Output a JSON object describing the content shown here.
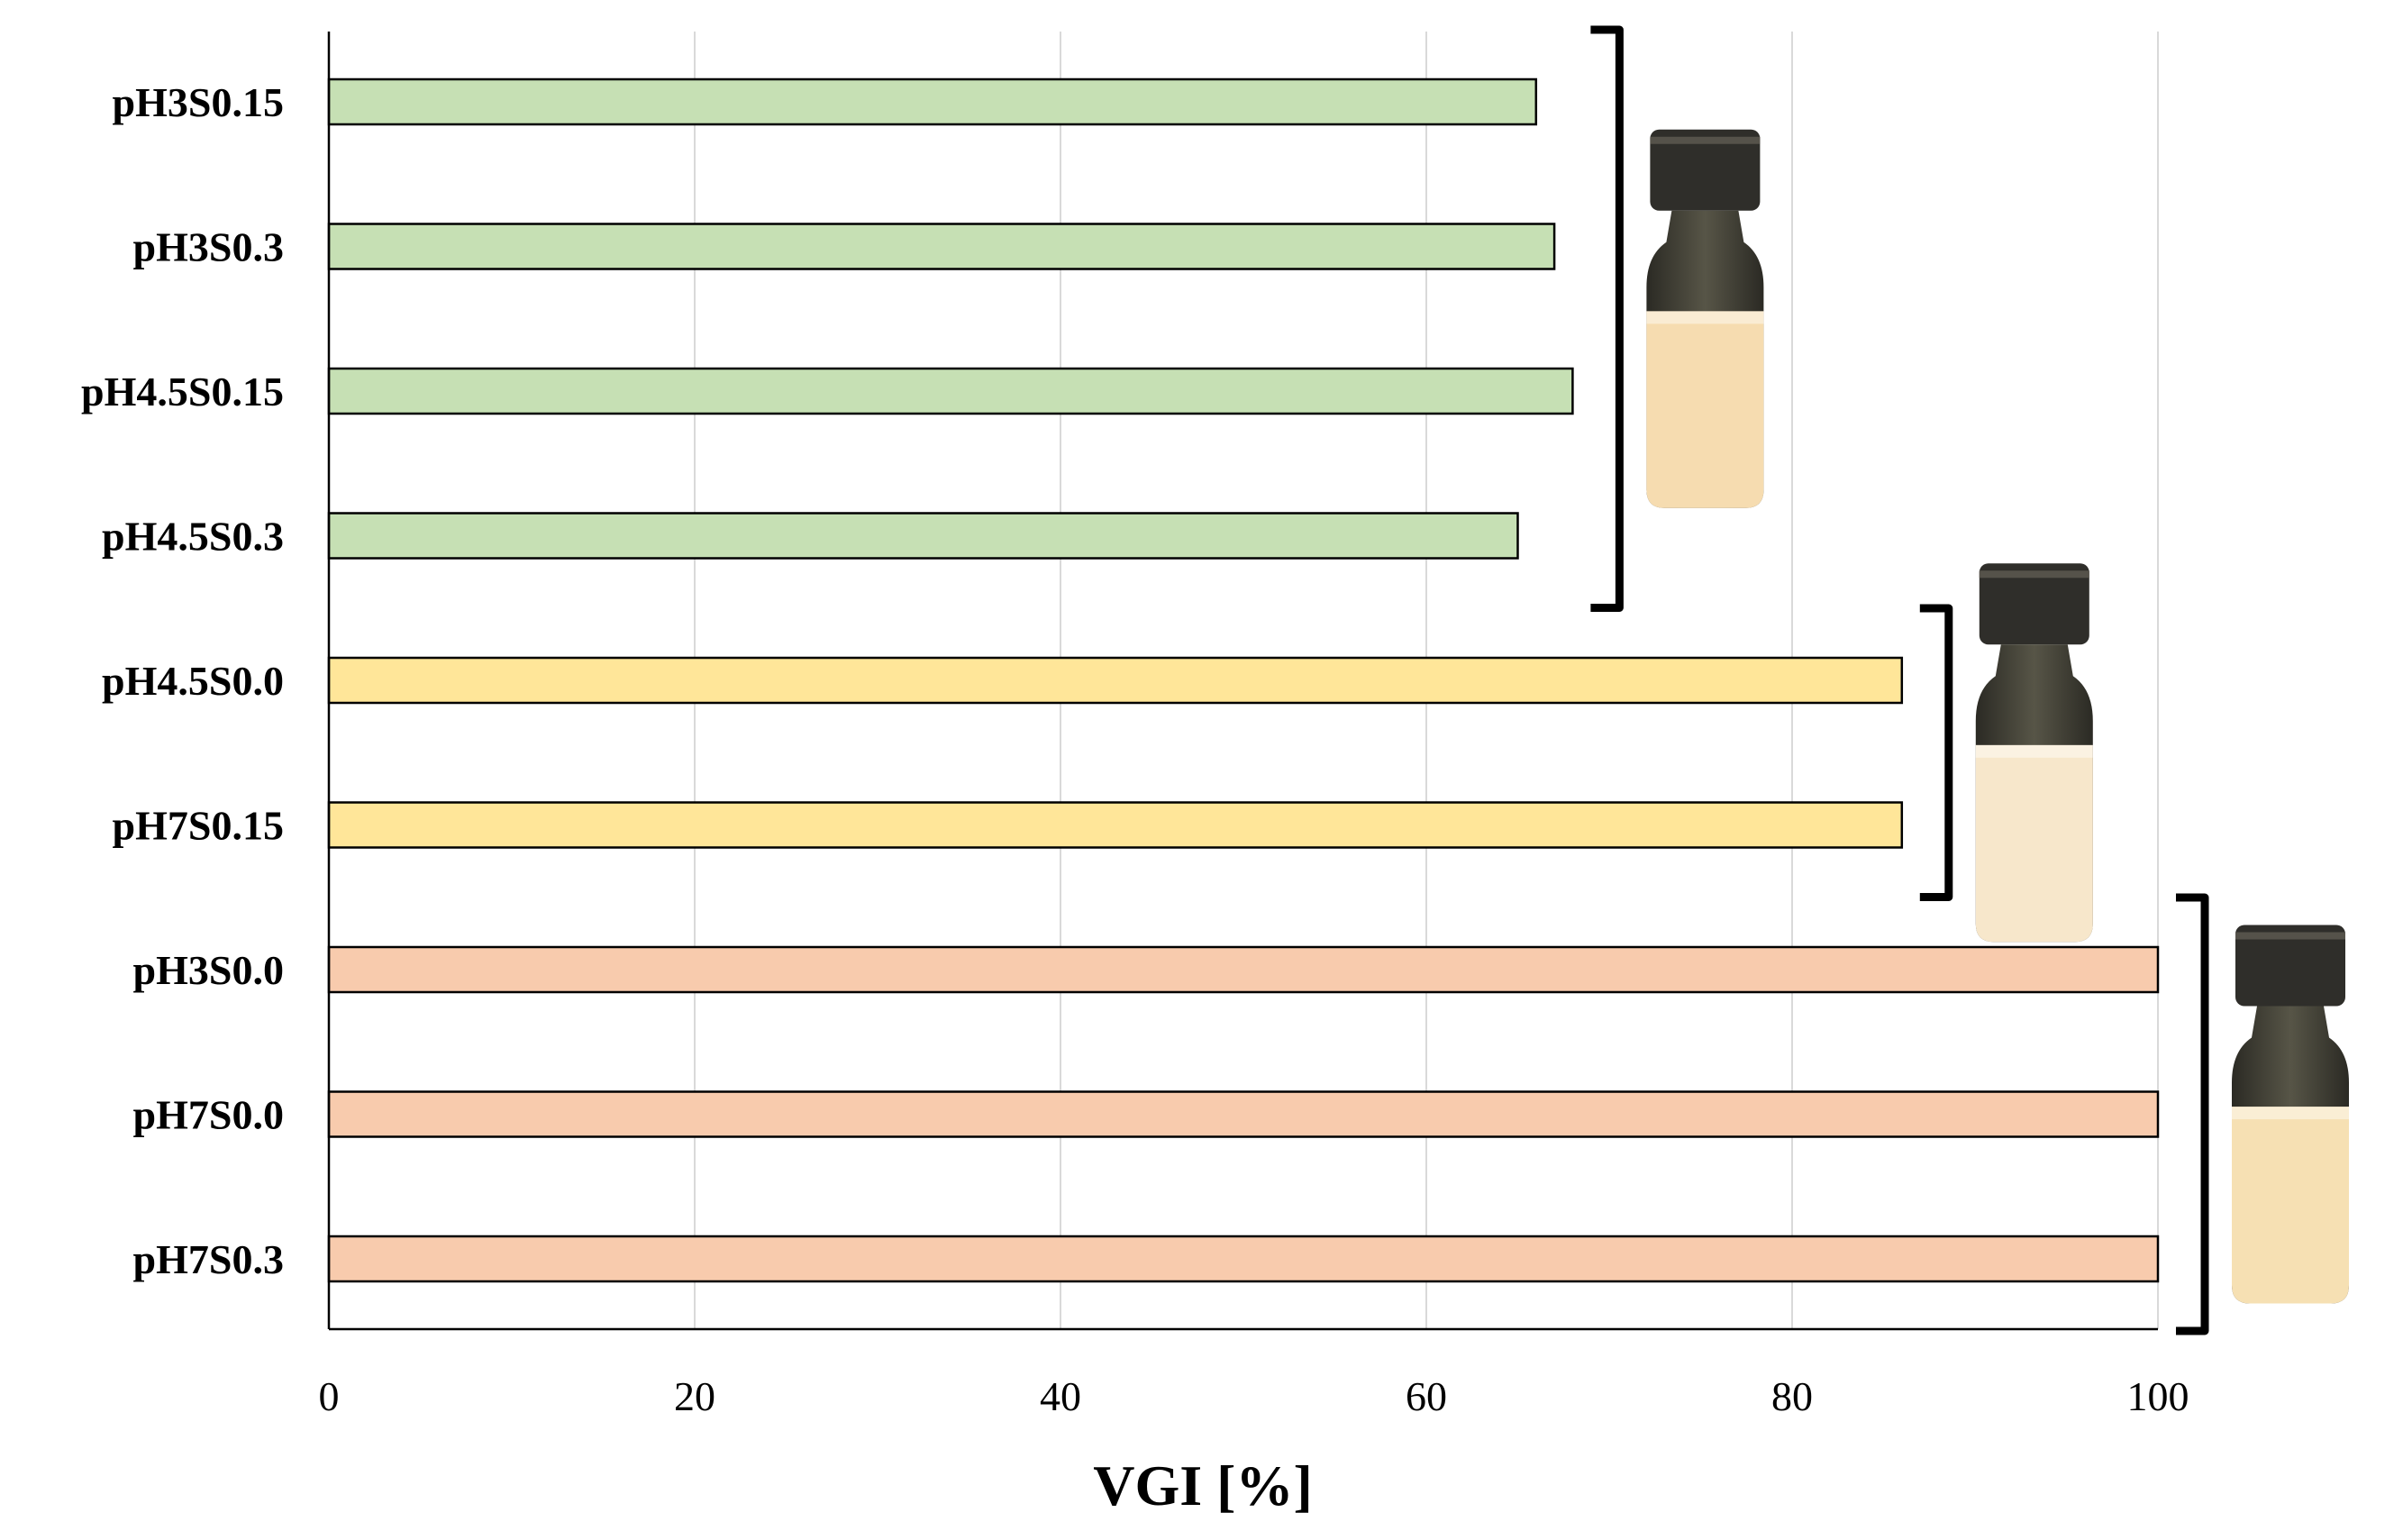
{
  "chart_data": {
    "type": "bar",
    "orientation": "horizontal",
    "categories": [
      "pH3S0.15",
      "pH3S0.3",
      "pH4.5S0.15",
      "pH4.5S0.3",
      "pH4.5S0.0",
      "pH7S0.15",
      "pH3S0.0",
      "pH7S0.0",
      "pH7S0.3"
    ],
    "values": [
      66,
      67,
      68,
      65,
      86,
      86,
      100,
      100,
      100
    ],
    "bar_colors": [
      "#c6e0b4",
      "#c6e0b4",
      "#c6e0b4",
      "#c6e0b4",
      "#ffe699",
      "#ffe699",
      "#f8cbad",
      "#f8cbad",
      "#f8cbad"
    ],
    "groups": [
      {
        "members": [
          0,
          1,
          2,
          3
        ],
        "vial_liquid_color": "#f6dcb0"
      },
      {
        "members": [
          4,
          5
        ],
        "vial_liquid_color": "#f7e7cb"
      },
      {
        "members": [
          6,
          7,
          8
        ],
        "vial_liquid_color": "#f6e0b3"
      }
    ],
    "xlabel": "VGI [%]",
    "ylabel": "",
    "title": "",
    "xlim": [
      0,
      100
    ],
    "xticks": [
      "0",
      "20",
      "40",
      "60",
      "80",
      "100"
    ],
    "grid": "vertical",
    "legend": "none"
  }
}
